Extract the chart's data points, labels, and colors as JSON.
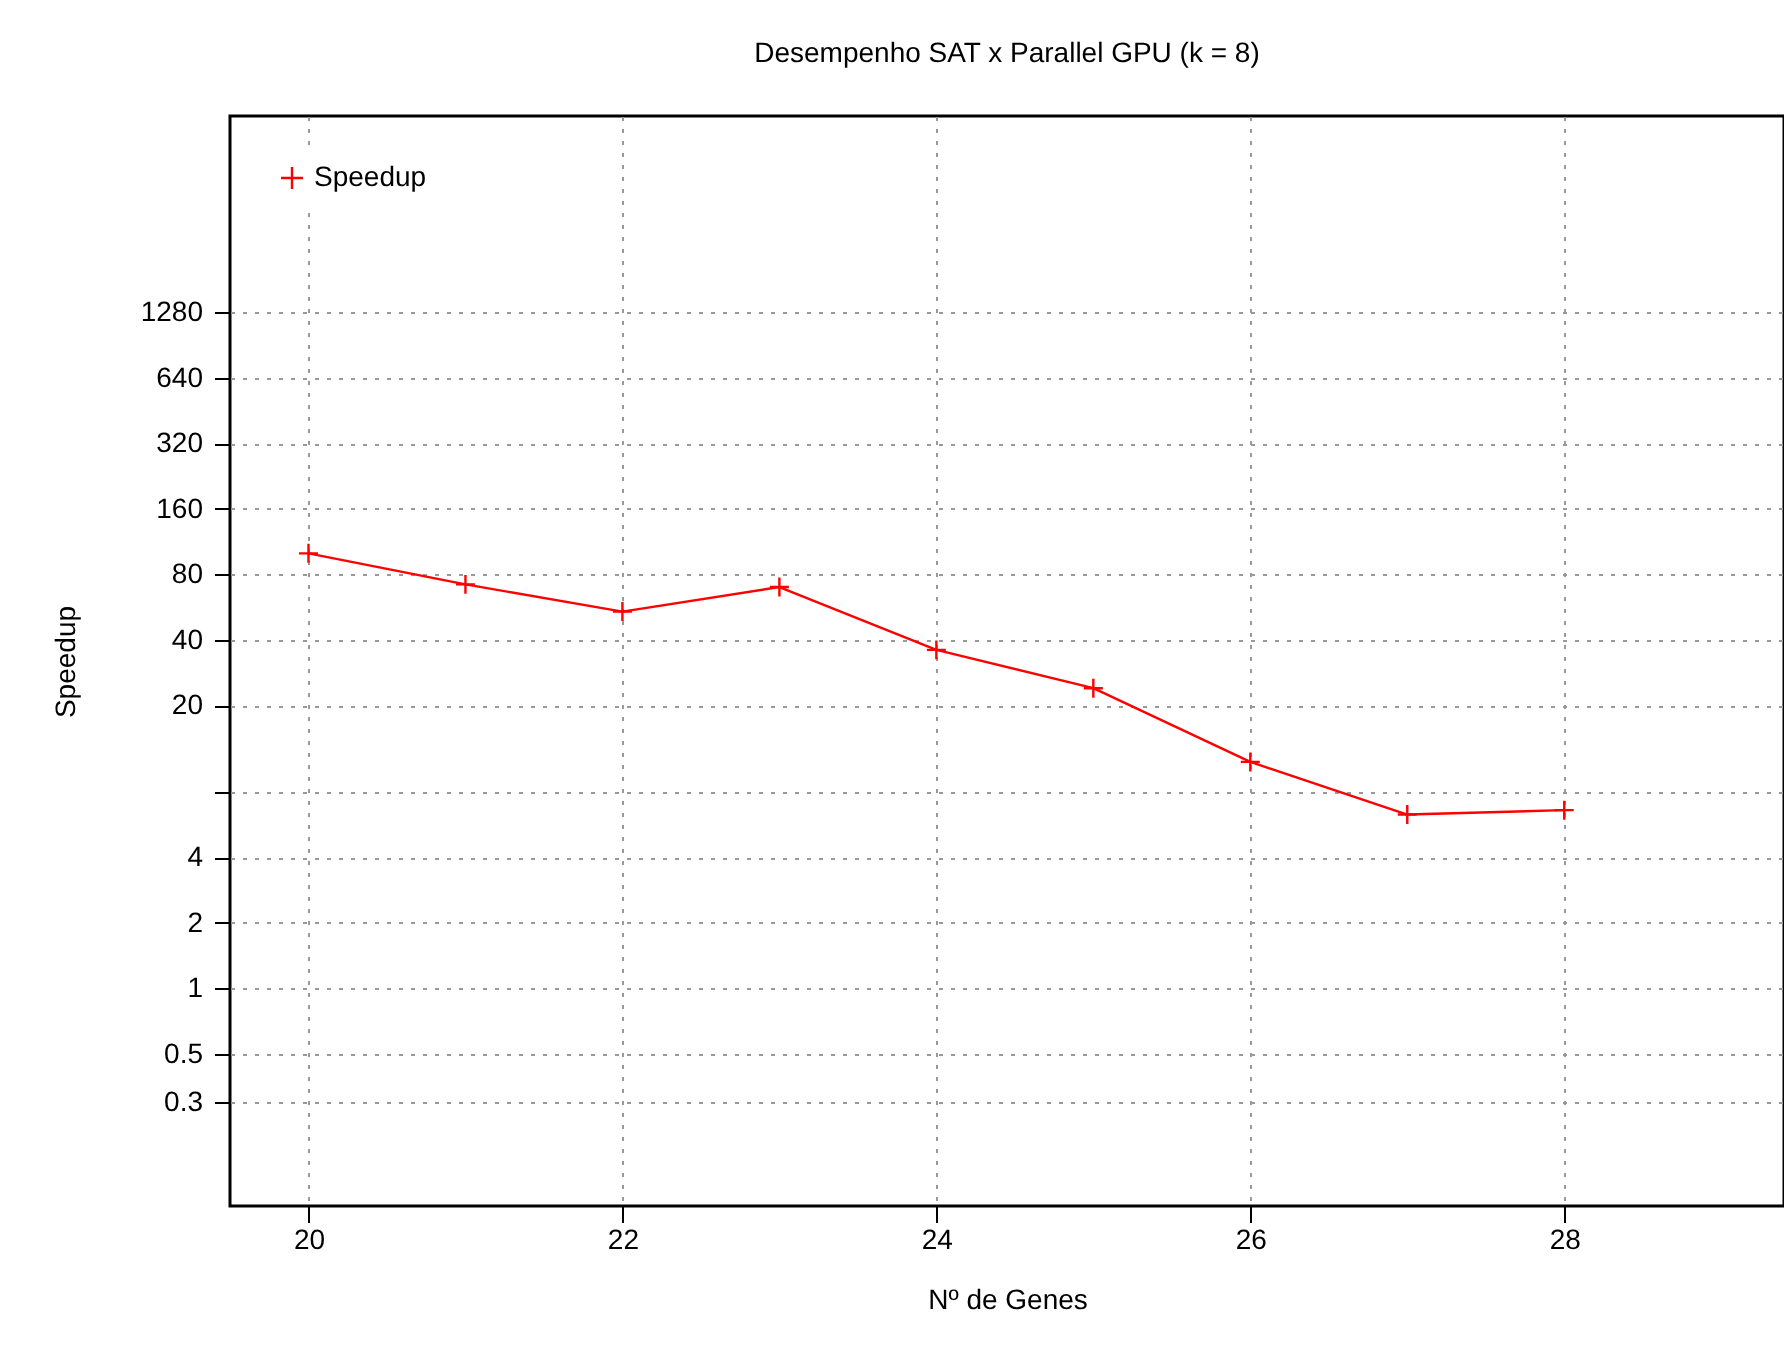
{
  "chart_data": {
    "type": "line",
    "title": "Desempenho SAT x Parallel GPU (k = 8)",
    "xlabel": "Nº de Genes",
    "ylabel": "Speedup",
    "x": [
      20,
      21,
      22,
      23,
      24,
      25,
      26,
      27,
      28
    ],
    "series": [
      {
        "name": "Speedup",
        "color": "#ff0000",
        "values": [
          100,
          72,
          54,
          70,
          36,
          24,
          11,
          6.3,
          6.6
        ]
      }
    ],
    "log": "y",
    "xlim": [
      19.5,
      29.4
    ],
    "xticks": [
      20,
      22,
      24,
      26,
      28
    ],
    "ylim": [
      0.1,
      10240
    ],
    "yticks": [
      0.3,
      0.5,
      1,
      2,
      4,
      {
        "value": 8,
        "label": null
      },
      20,
      40,
      80,
      160,
      320,
      640,
      1280
    ],
    "grid": true,
    "legend": "top left",
    "marker": "cross",
    "line_style": "solid"
  }
}
